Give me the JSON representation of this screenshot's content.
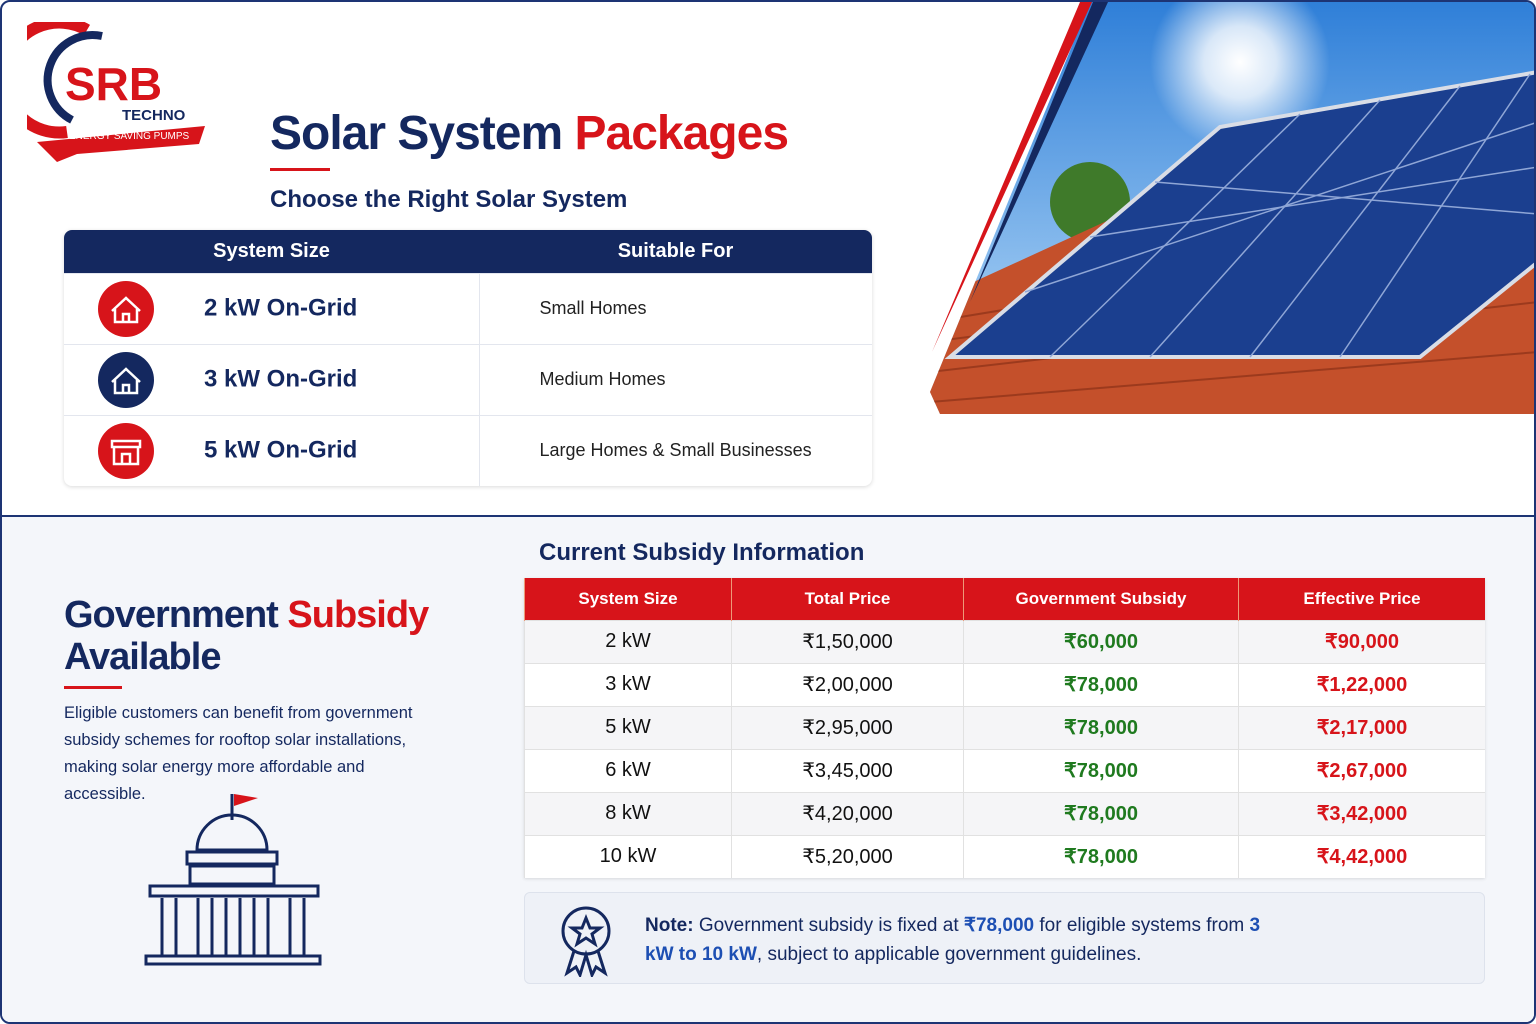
{
  "logo": {
    "name": "SRB",
    "sub": "TECHNO",
    "tagline": "ENERGY SAVING PUMPS"
  },
  "header": {
    "title_main": "Solar System",
    "title_accent": "Packages",
    "subtitle": "Choose the Right Solar System"
  },
  "packages": {
    "headers": [
      "System Size",
      "Suitable For"
    ],
    "rows": [
      [
        "2 kW On-Grid",
        "Small Homes"
      ],
      [
        "3 kW On-Grid",
        "Medium Homes"
      ],
      [
        "5 kW On-Grid",
        "Large Homes & Small Businesses"
      ]
    ]
  },
  "subsidy": {
    "title_main": "Government",
    "title_accent": "Subsidy",
    "title_line2": "Available",
    "description": "Eligible customers can benefit from government subsidy schemes for rooftop solar installations, making solar energy more affordable and accessible."
  },
  "subsidy_table": {
    "title": "Current Subsidy Information",
    "headers": [
      "System Size",
      "Total Price",
      "Government Subsidy",
      "Effective Price"
    ],
    "rows": [
      [
        "2 kW",
        "₹1,50,000",
        "₹60,000",
        "₹90,000"
      ],
      [
        "3 kW",
        "₹2,00,000",
        "₹78,000",
        "₹1,22,000"
      ],
      [
        "5 kW",
        "₹2,95,000",
        "₹78,000",
        "₹2,17,000"
      ],
      [
        "6 kW",
        "₹3,45,000",
        "₹78,000",
        "₹2,67,000"
      ],
      [
        "8 kW",
        "₹4,20,000",
        "₹78,000",
        "₹3,42,000"
      ],
      [
        "10 kW",
        "₹5,20,000",
        "₹78,000",
        "₹4,42,000"
      ]
    ]
  },
  "note": {
    "label": "Note:",
    "text1": " Government subsidy is fixed at ",
    "amount": "₹78,000",
    "text2": " for eligible systems from ",
    "range": "3 kW to 10 kW",
    "text3": ", subject to applicable government guidelines."
  }
}
